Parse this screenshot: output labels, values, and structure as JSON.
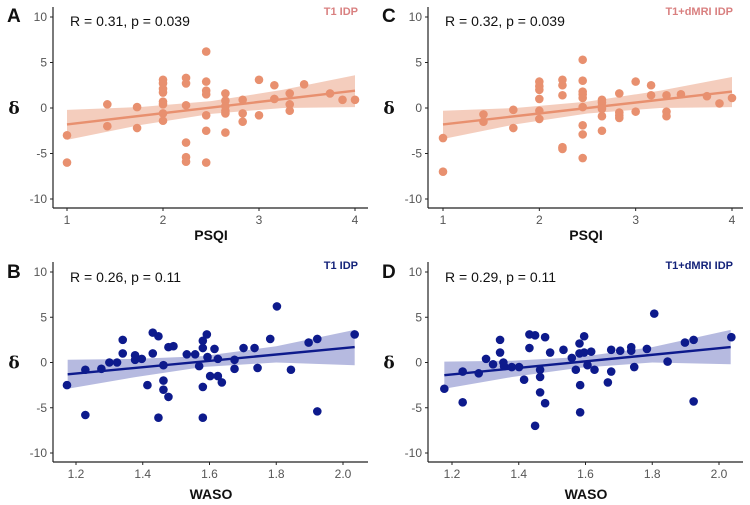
{
  "chart_data": [
    {
      "type": "scatter",
      "panel_letter": "A",
      "annotation": "R = 0.31, p = 0.039",
      "tag": "T1 IDP",
      "tag_color": "#D98080",
      "color": "#E8906F",
      "band_color": "#F2C4B2",
      "xlabel": "PSQI",
      "ylabel": "δ",
      "xticks": [
        1,
        2,
        3,
        4
      ],
      "yticks": [
        -10,
        -5,
        0,
        5,
        10
      ],
      "ylim": [
        -10,
        10
      ],
      "points": [
        [
          1,
          -3
        ],
        [
          1,
          -6
        ],
        [
          1.42,
          0.4
        ],
        [
          1.42,
          -2
        ],
        [
          1.73,
          0.1
        ],
        [
          1.73,
          -2.2
        ],
        [
          2,
          3.1
        ],
        [
          2,
          2.7
        ],
        [
          2,
          2.1
        ],
        [
          2,
          1.7
        ],
        [
          2,
          0.7
        ],
        [
          2,
          0.4
        ],
        [
          2,
          -0.6
        ],
        [
          2,
          -1.4
        ],
        [
          2.24,
          3.3
        ],
        [
          2.24,
          2.7
        ],
        [
          2.24,
          0.3
        ],
        [
          2.24,
          -3.8
        ],
        [
          2.24,
          -5.4
        ],
        [
          2.24,
          -5.9
        ],
        [
          2.45,
          6.2
        ],
        [
          2.45,
          2.9
        ],
        [
          2.45,
          1.9
        ],
        [
          2.45,
          1.5
        ],
        [
          2.45,
          -0.8
        ],
        [
          2.45,
          -2.5
        ],
        [
          2.45,
          -6
        ],
        [
          2.65,
          1.6
        ],
        [
          2.65,
          0.8
        ],
        [
          2.65,
          0.2
        ],
        [
          2.65,
          -0.3
        ],
        [
          2.65,
          -0.6
        ],
        [
          2.65,
          -2.7
        ],
        [
          2.83,
          0.9
        ],
        [
          2.83,
          -0.6
        ],
        [
          2.83,
          -1.5
        ],
        [
          3,
          3.1
        ],
        [
          3,
          -0.8
        ],
        [
          3.16,
          2.5
        ],
        [
          3.16,
          1
        ],
        [
          3.32,
          1.6
        ],
        [
          3.32,
          0.4
        ],
        [
          3.32,
          -0.3
        ],
        [
          3.47,
          2.6
        ],
        [
          3.74,
          1.6
        ],
        [
          3.87,
          0.9
        ],
        [
          4,
          0.9
        ]
      ],
      "fit": [
        [
          1,
          -1.8
        ],
        [
          4,
          1.9
        ]
      ],
      "ci": [
        [
          1,
          -3.5,
          -0.2
        ],
        [
          1.75,
          -1.9,
          0.1
        ],
        [
          2.5,
          -0.65,
          0.75
        ],
        [
          3.25,
          0,
          2.0
        ],
        [
          4,
          0.1,
          3.6
        ]
      ]
    },
    {
      "type": "scatter",
      "panel_letter": "C",
      "annotation": "R = 0.32, p = 0.039",
      "tag": "T1+dMRI IDP",
      "tag_color": "#D98080",
      "color": "#E8906F",
      "band_color": "#F2C4B2",
      "xlabel": "PSQI",
      "ylabel": "δ",
      "xticks": [
        1,
        2,
        3,
        4
      ],
      "yticks": [
        -10,
        -5,
        0,
        5,
        10
      ],
      "ylim": [
        -10,
        10
      ],
      "points": [
        [
          1,
          -3.3
        ],
        [
          1,
          -7
        ],
        [
          1.42,
          -0.7
        ],
        [
          1.42,
          -1.5
        ],
        [
          1.73,
          -0.2
        ],
        [
          1.73,
          -2.2
        ],
        [
          2,
          2.9
        ],
        [
          2,
          2.4
        ],
        [
          2,
          2
        ],
        [
          2,
          1
        ],
        [
          2,
          -0.3
        ],
        [
          2,
          -1.2
        ],
        [
          2.24,
          3.1
        ],
        [
          2.24,
          2.5
        ],
        [
          2.24,
          1.4
        ],
        [
          2.24,
          -4.3
        ],
        [
          2.24,
          -4.5
        ],
        [
          2.45,
          5.3
        ],
        [
          2.45,
          3
        ],
        [
          2.45,
          1.8
        ],
        [
          2.45,
          1.5
        ],
        [
          2.45,
          1.1
        ],
        [
          2.45,
          0.1
        ],
        [
          2.45,
          -1.9
        ],
        [
          2.45,
          -2.9
        ],
        [
          2.45,
          -5.5
        ],
        [
          2.65,
          0.9
        ],
        [
          2.65,
          0.6
        ],
        [
          2.65,
          0.2
        ],
        [
          2.65,
          -0.1
        ],
        [
          2.65,
          -0.9
        ],
        [
          2.65,
          -2.5
        ],
        [
          2.83,
          1.6
        ],
        [
          2.83,
          -0.5
        ],
        [
          2.83,
          -0.8
        ],
        [
          2.83,
          -1.1
        ],
        [
          3,
          2.9
        ],
        [
          3,
          -0.4
        ],
        [
          3.16,
          2.5
        ],
        [
          3.16,
          1.4
        ],
        [
          3.32,
          1.4
        ],
        [
          3.32,
          -0.4
        ],
        [
          3.32,
          -0.9
        ],
        [
          3.47,
          1.5
        ],
        [
          3.74,
          1.3
        ],
        [
          3.87,
          0.5
        ],
        [
          4,
          1.1
        ]
      ],
      "fit": [
        [
          1,
          -1.8
        ],
        [
          4,
          1.8
        ]
      ],
      "ci": [
        [
          1,
          -3.4,
          -0.3
        ],
        [
          1.75,
          -1.8,
          0
        ],
        [
          2.5,
          -0.6,
          0.7
        ],
        [
          3.25,
          0,
          1.9
        ],
        [
          4,
          0.1,
          3.4
        ]
      ]
    },
    {
      "type": "scatter",
      "panel_letter": "B",
      "annotation": "R = 0.26, p = 0.11",
      "tag": "T1 IDP",
      "tag_color": "#14237A",
      "color": "#0D1A8C",
      "band_color": "#A9AEDA",
      "xlabel": "WASO",
      "ylabel": "δ",
      "xticks": [
        1.2,
        1.4,
        1.6,
        1.8,
        2.0
      ],
      "yticks": [
        -10,
        -5,
        0,
        5,
        10
      ],
      "ylim": [
        -10,
        10
      ],
      "points": [
        [
          1.173,
          -2.5
        ],
        [
          1.228,
          -0.8
        ],
        [
          1.228,
          -5.8
        ],
        [
          1.276,
          -0.7
        ],
        [
          1.3,
          0
        ],
        [
          1.323,
          0
        ],
        [
          1.34,
          2.5
        ],
        [
          1.34,
          1
        ],
        [
          1.377,
          0.8
        ],
        [
          1.377,
          0.3
        ],
        [
          1.397,
          0.4
        ],
        [
          1.414,
          -2.5
        ],
        [
          1.43,
          3.3
        ],
        [
          1.43,
          1
        ],
        [
          1.447,
          2.9
        ],
        [
          1.447,
          -6.1
        ],
        [
          1.462,
          -0.3
        ],
        [
          1.462,
          -2
        ],
        [
          1.462,
          -3
        ],
        [
          1.477,
          1.7
        ],
        [
          1.477,
          -3.8
        ],
        [
          1.492,
          1.8
        ],
        [
          1.532,
          0.9
        ],
        [
          1.557,
          0.9
        ],
        [
          1.569,
          -0.4
        ],
        [
          1.58,
          2.4
        ],
        [
          1.58,
          1.6
        ],
        [
          1.58,
          -2.7
        ],
        [
          1.58,
          -6.1
        ],
        [
          1.592,
          3.1
        ],
        [
          1.594,
          0.6
        ],
        [
          1.602,
          -1.5
        ],
        [
          1.615,
          1.5
        ],
        [
          1.625,
          -1.5
        ],
        [
          1.625,
          0.4
        ],
        [
          1.637,
          -2.2
        ],
        [
          1.675,
          0.3
        ],
        [
          1.675,
          -0.7
        ],
        [
          1.702,
          1.6
        ],
        [
          1.735,
          1.6
        ],
        [
          1.744,
          -0.6
        ],
        [
          1.782,
          2.6
        ],
        [
          1.802,
          6.2
        ],
        [
          1.844,
          -0.8
        ],
        [
          1.897,
          2.2
        ],
        [
          1.923,
          2.6
        ],
        [
          1.923,
          -5.4
        ],
        [
          2.035,
          3.1
        ]
      ],
      "fit": [
        [
          1.175,
          -1.3
        ],
        [
          2.035,
          1.7
        ]
      ],
      "ci": [
        [
          1.175,
          -2.9,
          0.3
        ],
        [
          1.38,
          -1.6,
          0.4
        ],
        [
          1.58,
          -0.5,
          0.7
        ],
        [
          1.8,
          0,
          1.8
        ],
        [
          2.035,
          -0.3,
          3.6
        ]
      ]
    },
    {
      "type": "scatter",
      "panel_letter": "D",
      "annotation": "R = 0.29, p = 0.11",
      "tag": "T1+dMRI IDP",
      "tag_color": "#14237A",
      "color": "#0D1A8C",
      "band_color": "#A9AEDA",
      "xlabel": "WASO",
      "ylabel": "δ",
      "xticks": [
        1.2,
        1.4,
        1.6,
        1.8,
        2.0
      ],
      "yticks": [
        -10,
        -5,
        0,
        5,
        10
      ],
      "ylim": [
        -10,
        10
      ],
      "points": [
        [
          1.177,
          -2.9
        ],
        [
          1.232,
          -1
        ],
        [
          1.232,
          -4.4
        ],
        [
          1.28,
          -1.2
        ],
        [
          1.302,
          0.4
        ],
        [
          1.323,
          -0.2
        ],
        [
          1.344,
          2.5
        ],
        [
          1.344,
          1.1
        ],
        [
          1.354,
          0
        ],
        [
          1.356,
          -0.4
        ],
        [
          1.379,
          -0.5
        ],
        [
          1.401,
          -0.5
        ],
        [
          1.416,
          -1.9
        ],
        [
          1.432,
          3.1
        ],
        [
          1.432,
          1.6
        ],
        [
          1.449,
          3
        ],
        [
          1.449,
          -7
        ],
        [
          1.464,
          -0.8
        ],
        [
          1.464,
          -1.6
        ],
        [
          1.464,
          -3.3
        ],
        [
          1.479,
          2.8
        ],
        [
          1.479,
          -4.5
        ],
        [
          1.494,
          1.1
        ],
        [
          1.534,
          1.4
        ],
        [
          1.559,
          0.5
        ],
        [
          1.571,
          -0.8
        ],
        [
          1.582,
          2.1
        ],
        [
          1.582,
          1
        ],
        [
          1.584,
          -2.5
        ],
        [
          1.584,
          -5.5
        ],
        [
          1.596,
          2.9
        ],
        [
          1.596,
          1.1
        ],
        [
          1.606,
          -0.3
        ],
        [
          1.617,
          1.2
        ],
        [
          1.627,
          -0.8
        ],
        [
          1.667,
          -2.2
        ],
        [
          1.677,
          1.4
        ],
        [
          1.677,
          -1
        ],
        [
          1.704,
          1.3
        ],
        [
          1.737,
          1.7
        ],
        [
          1.737,
          1.3
        ],
        [
          1.746,
          -0.5
        ],
        [
          1.784,
          1.5
        ],
        [
          1.806,
          5.4
        ],
        [
          1.846,
          0.1
        ],
        [
          1.898,
          2.2
        ],
        [
          1.924,
          2.5
        ],
        [
          1.924,
          -4.3
        ],
        [
          2.037,
          2.8
        ]
      ],
      "fit": [
        [
          1.177,
          -1.4
        ],
        [
          2.035,
          1.7
        ]
      ],
      "ci": [
        [
          1.177,
          -2.9,
          0.1
        ],
        [
          1.38,
          -1.6,
          0.2
        ],
        [
          1.58,
          -0.6,
          0.6
        ],
        [
          1.8,
          0,
          1.7
        ],
        [
          2.035,
          -0.2,
          3.6
        ]
      ]
    }
  ]
}
